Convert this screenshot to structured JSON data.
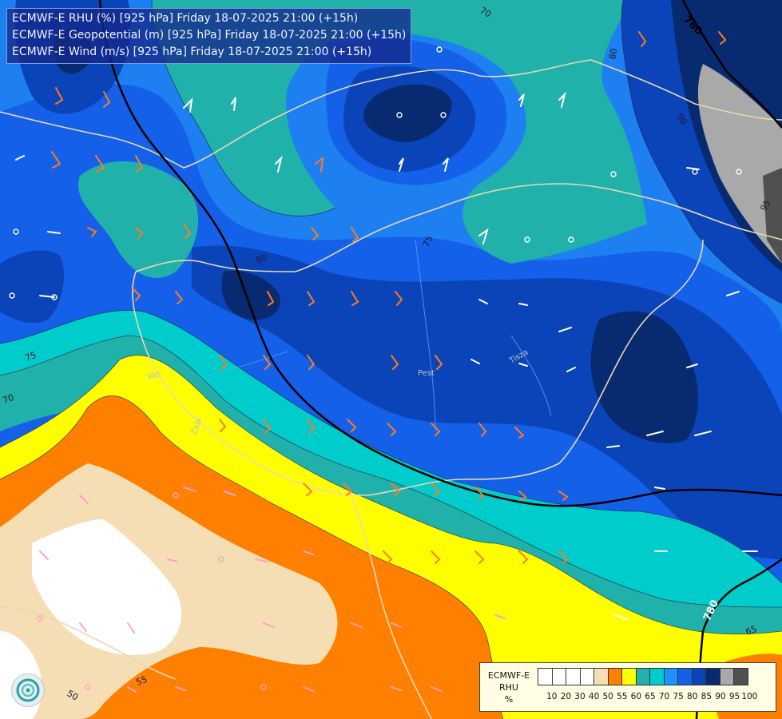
{
  "info": {
    "lines": [
      "ECMWF-E RHU (%) [925 hPa] Friday 18-07-2025 21:00 (+15h)",
      "ECMWF-E Geopotential (m) [925 hPa] Friday 18-07-2025 21:00 (+15h)",
      "ECMWF-E Wind (m/s) [925 hPa] Friday 18-07-2025 21:00 (+15h)"
    ]
  },
  "legend": {
    "title": [
      "ECMWF-E",
      "RHU",
      "%"
    ],
    "levels": [
      10,
      20,
      30,
      40,
      50,
      55,
      60,
      65,
      70,
      75,
      80,
      85,
      90,
      95,
      100
    ],
    "colors": [
      "#ffffff",
      "#ffffff",
      "#ffffff",
      "#ffffff",
      "#f5deb3",
      "#ff8000",
      "#ffff00",
      "#20b2aa",
      "#00cccc",
      "#1e90ff",
      "#1560e8",
      "#0a44b8",
      "#082a70",
      "#a9a9a9",
      "#505050"
    ]
  },
  "contour_labels": {
    "rhu": [
      "70",
      "80",
      "90",
      "95",
      "75",
      "80",
      "75",
      "70",
      "55",
      "50",
      "65"
    ],
    "geopotential": [
      "760",
      "780"
    ]
  },
  "place_labels": [
    "Pest",
    "Vas",
    "Zala",
    "Tisza"
  ],
  "icons": {
    "logo": "ecmwf-logo-icon",
    "wind": "wind-barb-icon"
  }
}
